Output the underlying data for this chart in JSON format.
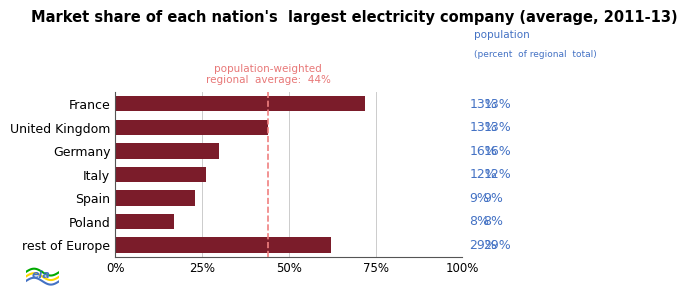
{
  "title": "Market share of each nation's  largest electricity company (average, 2011-13)",
  "categories": [
    "rest of Europe",
    "Poland",
    "Spain",
    "Italy",
    "Germany",
    "United Kingdom",
    "France"
  ],
  "values": [
    62,
    17,
    23,
    26,
    30,
    44,
    72
  ],
  "bar_color": "#7B1C2A",
  "avg_line": 44,
  "avg_label_line1": "population-weighted",
  "avg_label_line2": "regional  average:  44%",
  "pop_header_line1": "population",
  "pop_header_line2": "(percent  of regional  total)",
  "pop_values": [
    "29%",
    "8%",
    "9%",
    "12%",
    "16%",
    "13%",
    "13%"
  ],
  "pop_color": "#4472C4",
  "avg_line_color": "#F08080",
  "avg_text_color": "#E87878",
  "xlabel_ticks": [
    0,
    25,
    50,
    75,
    100
  ],
  "xlabel_labels": [
    "0%",
    "25%",
    "50%",
    "75%",
    "100%"
  ],
  "title_fontsize": 10.5,
  "label_fontsize": 9,
  "tick_fontsize": 8.5,
  "pop_fontsize": 9,
  "annotation_fontsize": 7.5
}
